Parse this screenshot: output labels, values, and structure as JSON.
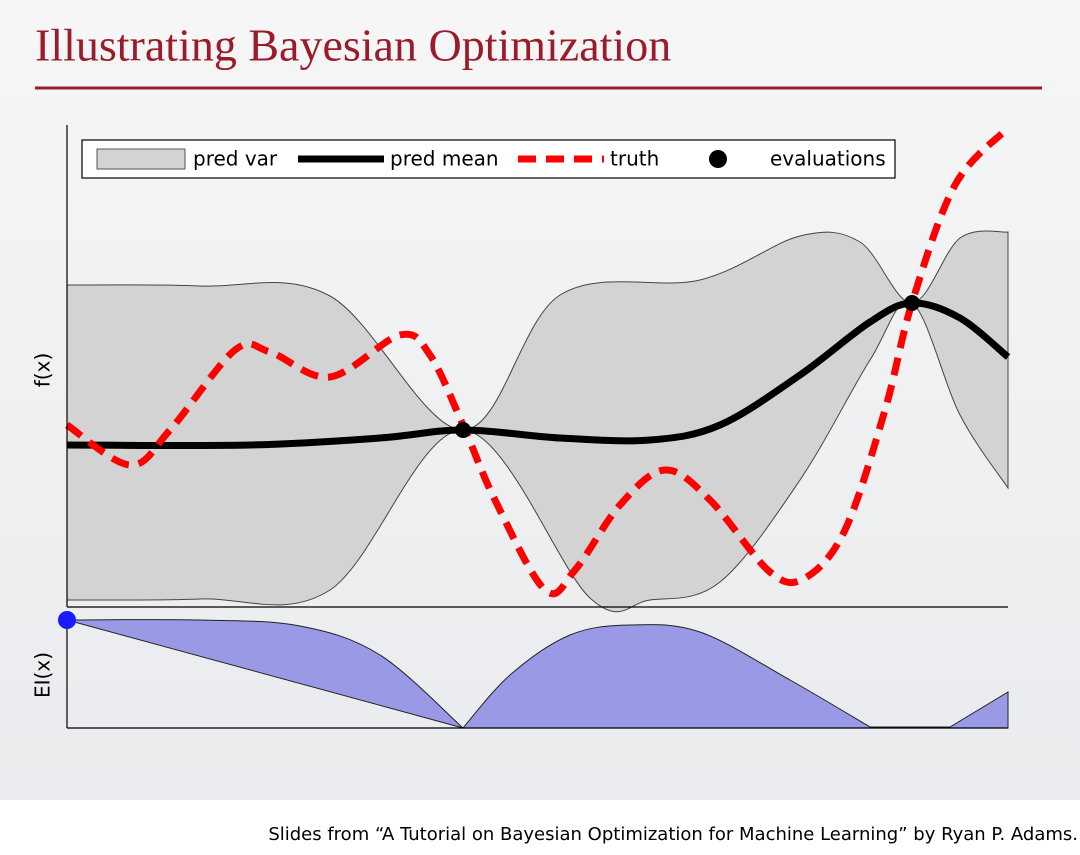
{
  "slide": {
    "title": "Illustrating Bayesian Optimization",
    "plot": {
      "legend": [
        "pred var",
        "pred mean",
        "truth",
        "evaluations"
      ],
      "top_axis_label": "f(x)",
      "bottom_axis_label": "EI(x)"
    }
  },
  "footer": "Slides from “A Tutorial on Bayesian Optimization for Machine Learning” by Ryan P. Adams."
}
